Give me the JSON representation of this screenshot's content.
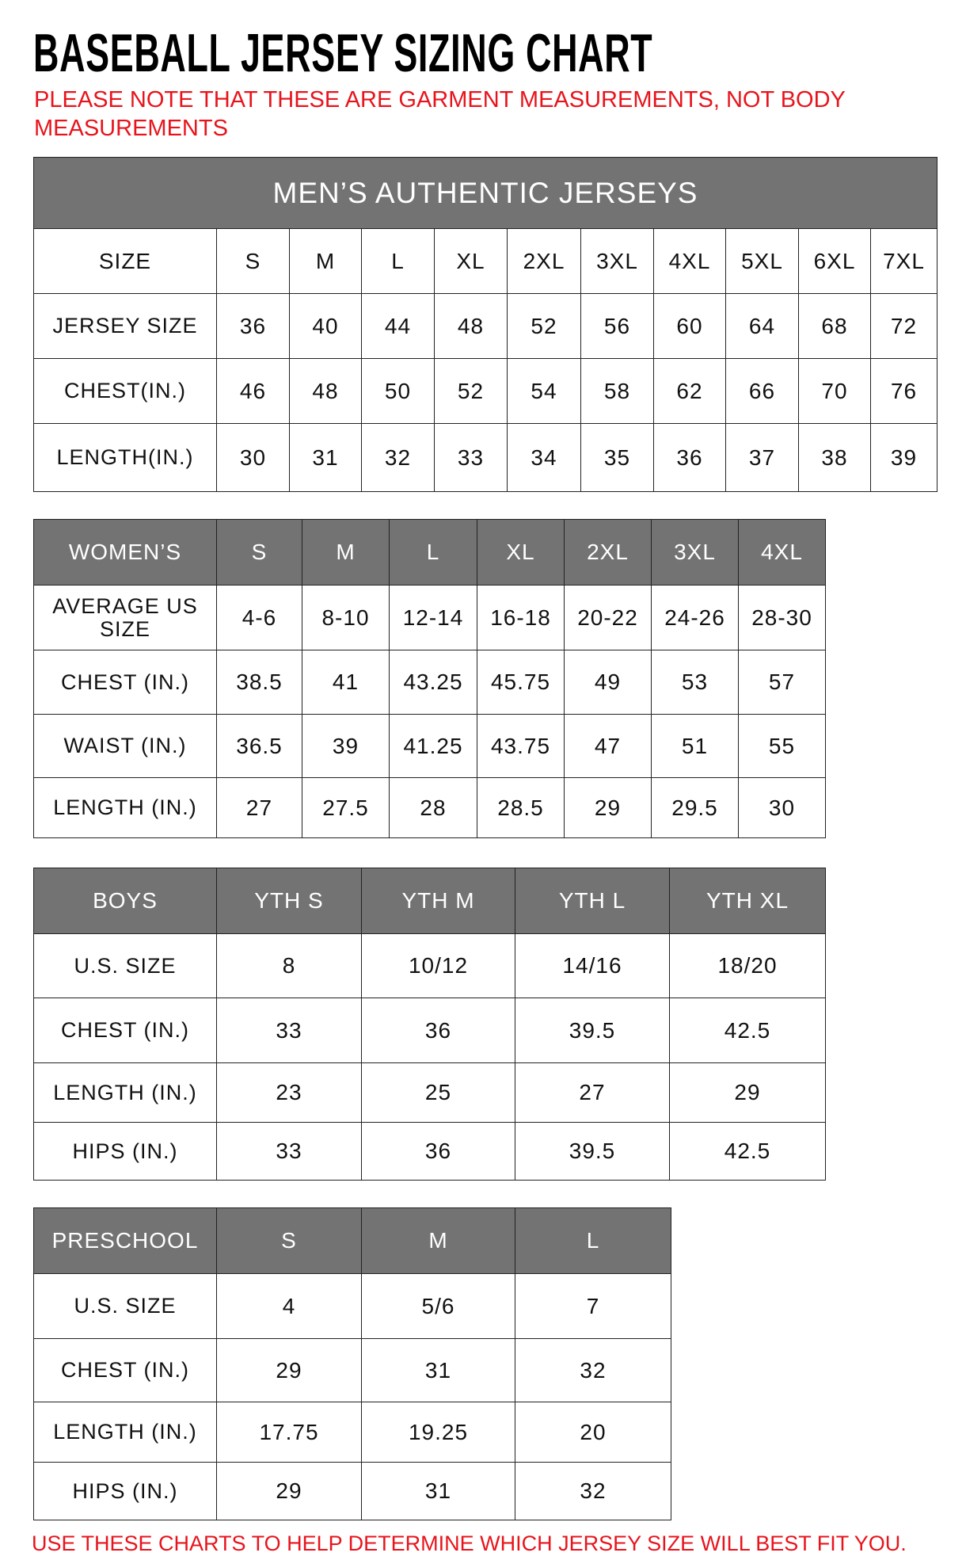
{
  "title": "BASEBALL JERSEY SIZING CHART",
  "note": "PLEASE NOTE THAT THESE ARE GARMENT MEASUREMENTS, NOT BODY MEASUREMENTS",
  "footer": "USE THESE CHARTS TO HELP DETERMINE WHICH JERSEY SIZE WILL BEST FIT YOU.",
  "colors": {
    "header_bg": "#737373",
    "note_red": "#e8141c"
  },
  "tables": [
    {
      "caption": "MEN’S AUTHENTIC JERSEYS",
      "header": [
        "SIZE",
        "S",
        "M",
        "L",
        "XL",
        "2XL",
        "3XL",
        "4XL",
        "5XL",
        "6XL",
        "7XL"
      ],
      "header_style": "plain",
      "rows": [
        [
          "JERSEY SIZE",
          "36",
          "40",
          "44",
          "48",
          "52",
          "56",
          "60",
          "64",
          "68",
          "72"
        ],
        [
          "CHEST(IN.)",
          "46",
          "48",
          "50",
          "52",
          "54",
          "58",
          "62",
          "66",
          "70",
          "76"
        ],
        [
          "LENGTH(IN.)",
          "30",
          "31",
          "32",
          "33",
          "34",
          "35",
          "36",
          "37",
          "38",
          "39"
        ]
      ]
    },
    {
      "header": [
        "WOMEN’S",
        "S",
        "M",
        "L",
        "XL",
        "2XL",
        "3XL",
        "4XL"
      ],
      "header_style": "dark",
      "rows": [
        [
          "AVERAGE US SIZE",
          "4-6",
          "8-10",
          "12-14",
          "16-18",
          "20-22",
          "24-26",
          "28-30"
        ],
        [
          "CHEST (IN.)",
          "38.5",
          "41",
          "43.25",
          "45.75",
          "49",
          "53",
          "57"
        ],
        [
          "WAIST (IN.)",
          "36.5",
          "39",
          "41.25",
          "43.75",
          "47",
          "51",
          "55"
        ],
        [
          "LENGTH (IN.)",
          "27",
          "27.5",
          "28",
          "28.5",
          "29",
          "29.5",
          "30"
        ]
      ]
    },
    {
      "header": [
        "BOYS",
        "YTH S",
        "YTH M",
        "YTH L",
        "YTH XL"
      ],
      "header_style": "dark",
      "rows": [
        [
          "U.S. SIZE",
          "8",
          "10/12",
          "14/16",
          "18/20"
        ],
        [
          "CHEST (IN.)",
          "33",
          "36",
          "39.5",
          "42.5"
        ],
        [
          "LENGTH (IN.)",
          "23",
          "25",
          "27",
          "29"
        ],
        [
          "HIPS (IN.)",
          "33",
          "36",
          "39.5",
          "42.5"
        ]
      ]
    },
    {
      "header": [
        "PRESCHOOL",
        "S",
        "M",
        "L"
      ],
      "header_style": "dark",
      "rows": [
        [
          "U.S. SIZE",
          "4",
          "5/6",
          "7"
        ],
        [
          "CHEST (IN.)",
          "29",
          "31",
          "32"
        ],
        [
          "LENGTH (IN.)",
          "17.75",
          "19.25",
          "20"
        ],
        [
          "HIPS (IN.)",
          "29",
          "31",
          "32"
        ]
      ]
    }
  ]
}
